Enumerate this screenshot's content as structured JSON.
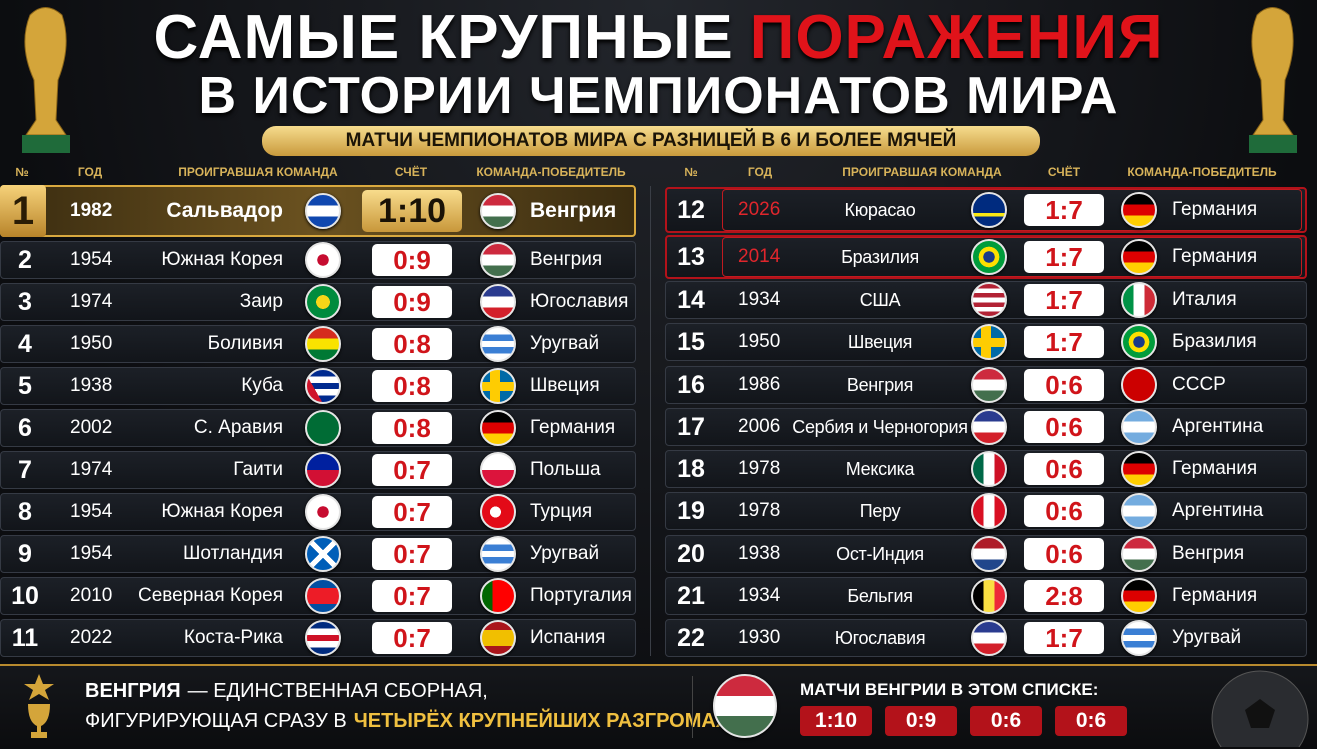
{
  "header": {
    "title_line1": "САМЫЕ КРУПНЫЕ",
    "title_highlight": "ПОРАЖЕНИЯ",
    "title_line2": "В ИСТОРИИ ЧЕМПИОНАТОВ МИРА",
    "subtitle": "МАТЧИ ЧЕМПИОНАТОВ МИРА С РАЗНИЦЕЙ В 6 И БОЛЕЕ МЯЧЕЙ"
  },
  "table": {
    "columns": [
      "№",
      "ГОД",
      "ПРОИГРАВШАЯ КОМАНДА",
      "СЧЁТ",
      "КОМАНДА-ПОБЕДИТЕЛЬ"
    ],
    "rows": [
      [
        1,
        "1982",
        "Сальвадор",
        "1:10",
        "Венгрия"
      ],
      [
        2,
        "1954",
        "Южная Корея",
        "0:9",
        "Венгрия"
      ],
      [
        3,
        "1974",
        "Заир",
        "0:9",
        "Югославия"
      ],
      [
        4,
        "1950",
        "Боливия",
        "0:8",
        "Уругвай"
      ],
      [
        5,
        "1938",
        "Куба",
        "0:8",
        "Швеция"
      ],
      [
        6,
        "2002",
        "С. Аравия",
        "0:8",
        "Германия"
      ],
      [
        7,
        "1974",
        "Гаити",
        "0:7",
        "Польша"
      ],
      [
        8,
        "1954",
        "Южная Корея",
        "0:7",
        "Турция"
      ],
      [
        9,
        "1954",
        "Шотландия",
        "0:7",
        "Уругвай"
      ],
      [
        10,
        "2010",
        "Северная Корея",
        "0:7",
        "Португалия"
      ],
      [
        11,
        "2022",
        "Коста-Рика",
        "0:7",
        "Испания"
      ],
      [
        12,
        "2026",
        "Кюрасао",
        "1:7",
        "Германия"
      ],
      [
        13,
        "2014",
        "Бразилия",
        "1:7",
        "Германия"
      ],
      [
        14,
        "1934",
        "США",
        "1:7",
        "Италия"
      ],
      [
        15,
        "1950",
        "Швеция",
        "1:7",
        "Бразилия"
      ],
      [
        16,
        "1986",
        "Венгрия",
        "0:6",
        "СССР"
      ],
      [
        17,
        "2006",
        "Сербия и Черногория",
        "0:6",
        "Аргентина"
      ],
      [
        18,
        "1978",
        "Мексика",
        "0:6",
        "Германия"
      ],
      [
        19,
        "1978",
        "Перу",
        "0:6",
        "Аргентина"
      ],
      [
        20,
        "1938",
        "Ост-Индия",
        "0:6",
        "Венгрия"
      ],
      [
        21,
        "1934",
        "Бельгия",
        "2:8",
        "Германия"
      ],
      [
        22,
        "1930",
        "Югославия",
        "1:7",
        "Уругвай"
      ]
    ]
  },
  "footer": {
    "team": "ВЕНГРИЯ",
    "text_line1": "— ЕДИНСТВЕННАЯ СБОРНАЯ,",
    "text_line2": "ФИГУРИРУЮЩАЯ СРАЗУ В",
    "text_highlight": "ЧЕТЫРЁХ КРУПНЕЙШИХ РАЗГРОМАХ ЧМ",
    "matches_title": "МАТЧИ ВЕНГРИИ В ЭТОМ СПИСКЕ:",
    "matches": [
      "1:10",
      "0:9",
      "0:6",
      "0:6"
    ]
  }
}
